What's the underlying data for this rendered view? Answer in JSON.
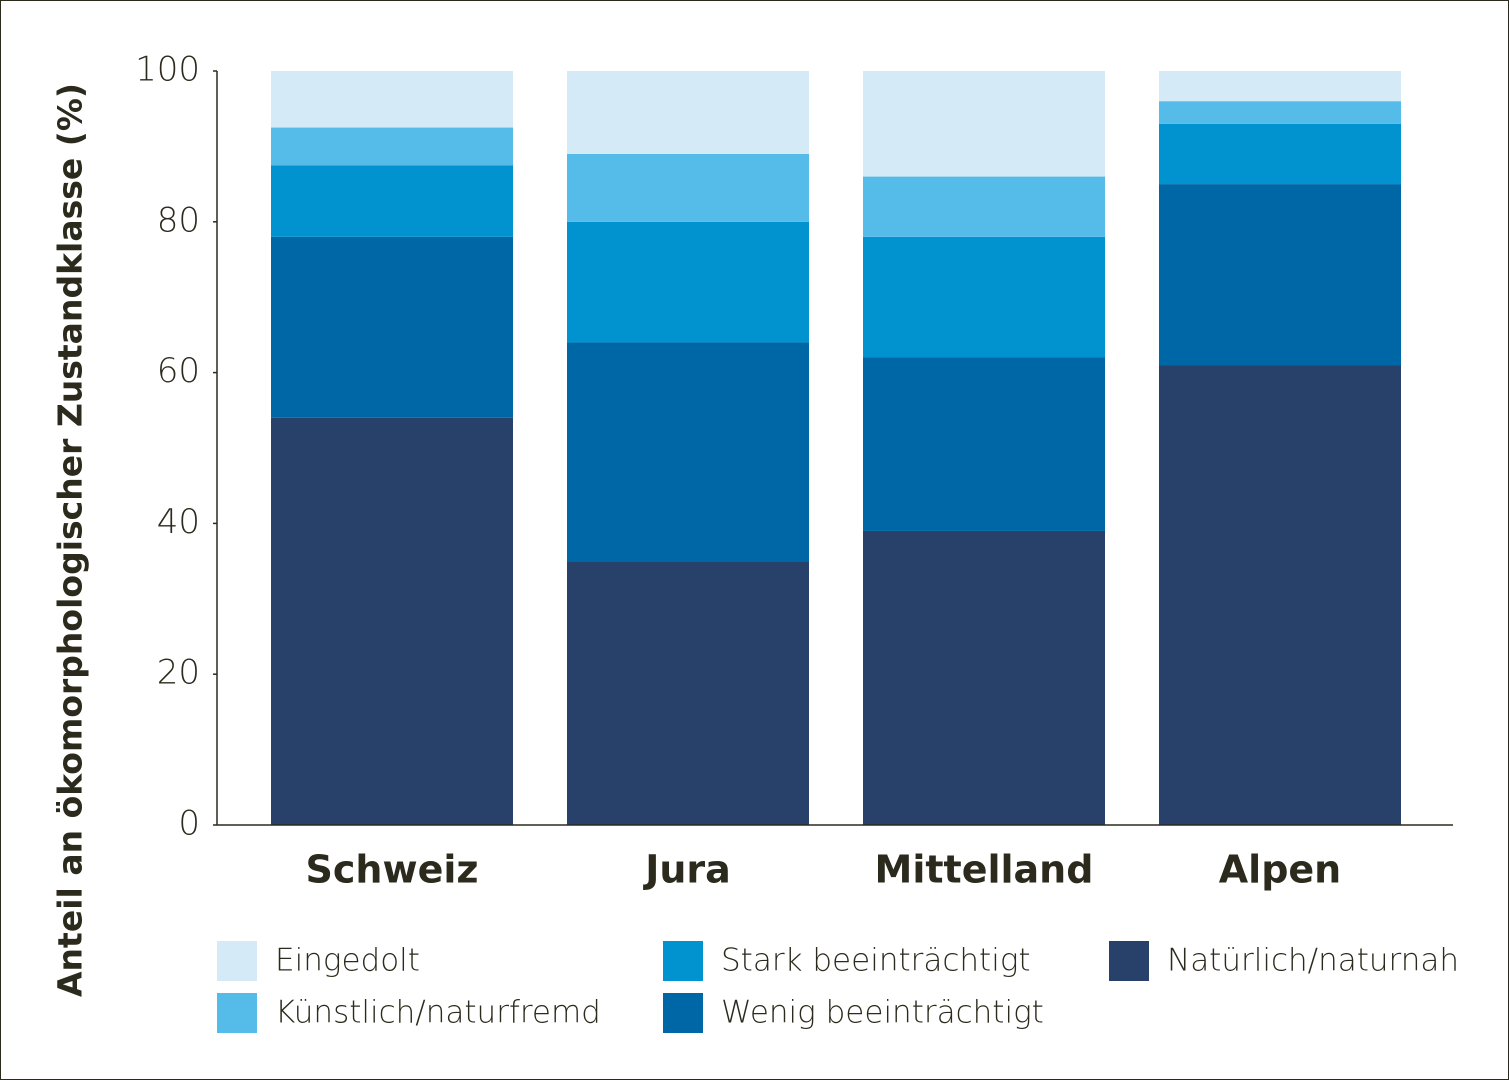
{
  "chart_data": {
    "type": "stacked-bar",
    "y_label": "Anteil an ökomorphologischer Zustandklasse (%)",
    "categories": [
      "Schweiz",
      "Jura",
      "Mittelland",
      "Alpen"
    ],
    "series": [
      {
        "name": "Eingedolt",
        "color": "#d5eaf7",
        "values": [
          7.5,
          11,
          14,
          4
        ]
      },
      {
        "name": "Künstlich/naturfremd",
        "color": "#55bcea",
        "values": [
          5,
          9,
          8,
          3
        ]
      },
      {
        "name": "Stark beeinträchtigt",
        "color": "#0093d0",
        "values": [
          9.5,
          16,
          16,
          8
        ]
      },
      {
        "name": "Wenig beeinträchtigt",
        "color": "#0067a6",
        "values": [
          24,
          29,
          23,
          24
        ]
      },
      {
        "name": "Natürlich/naturnah",
        "color": "#27416b",
        "values": [
          54,
          35,
          39,
          61
        ]
      }
    ],
    "ylim": [
      0,
      100
    ],
    "yticks": [
      0,
      20,
      40,
      60,
      80,
      100
    ]
  }
}
